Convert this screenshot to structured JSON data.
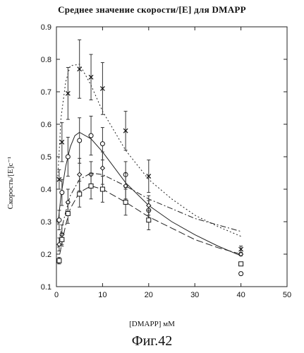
{
  "title": "Среднее значение скорости/[E] для DMAPP",
  "figure_caption": "Фиг.42",
  "chart_data": {
    "type": "scatter",
    "title": "Среднее значение скорости/[E] для DMAPP",
    "xlabel": "[DMAPP] мМ",
    "ylabel": "Скорость/[E]с⁻¹",
    "xlim": [
      0,
      50
    ],
    "ylim": [
      0.1,
      0.9
    ],
    "xticks": [
      0,
      10,
      20,
      30,
      40,
      50
    ],
    "yticks": [
      0.1,
      0.2,
      0.3,
      0.4,
      0.5,
      0.6,
      0.7,
      0.8,
      0.9
    ],
    "grid": false,
    "series": [
      {
        "marker": "x",
        "points": [
          {
            "x": 0.6,
            "y": 0.43,
            "err": 0.03
          },
          {
            "x": 1.2,
            "y": 0.545,
            "err": 0.06
          },
          {
            "x": 2.5,
            "y": 0.695,
            "err": 0.08
          },
          {
            "x": 5,
            "y": 0.77,
            "err": 0.09
          },
          {
            "x": 7.5,
            "y": 0.745,
            "err": 0.07
          },
          {
            "x": 10,
            "y": 0.71,
            "err": 0.08
          },
          {
            "x": 15,
            "y": 0.58,
            "err": 0.06
          },
          {
            "x": 20,
            "y": 0.44,
            "err": 0.05
          },
          {
            "x": 40,
            "y": 0.215,
            "err": 0.01
          }
        ],
        "fit": {
          "line_style": "dotted",
          "curve": [
            [
              0.3,
              0.44
            ],
            [
              1,
              0.62
            ],
            [
              2,
              0.73
            ],
            [
              3,
              0.78
            ],
            [
              5,
              0.785
            ],
            [
              7.5,
              0.72
            ],
            [
              10,
              0.64
            ],
            [
              15,
              0.52
            ],
            [
              20,
              0.43
            ],
            [
              25,
              0.37
            ],
            [
              30,
              0.32
            ],
            [
              35,
              0.285
            ],
            [
              40,
              0.255
            ]
          ]
        }
      },
      {
        "marker": "o",
        "points": [
          {
            "x": 0.6,
            "y": 0.305,
            "err": 0.03
          },
          {
            "x": 1.2,
            "y": 0.39,
            "err": 0.04
          },
          {
            "x": 2.5,
            "y": 0.5,
            "err": 0.06
          },
          {
            "x": 5,
            "y": 0.55,
            "err": 0.07
          },
          {
            "x": 7.5,
            "y": 0.565,
            "err": 0.06
          },
          {
            "x": 10,
            "y": 0.54,
            "err": 0.05
          },
          {
            "x": 15,
            "y": 0.445,
            "err": 0.04
          },
          {
            "x": 20,
            "y": 0.335,
            "err": 0.03
          },
          {
            "x": 40,
            "y": 0.14,
            "err": 0.005
          }
        ],
        "fit": {
          "line_style": "solid",
          "curve": [
            [
              0.3,
              0.29
            ],
            [
              1,
              0.38
            ],
            [
              2,
              0.47
            ],
            [
              3,
              0.53
            ],
            [
              4,
              0.565
            ],
            [
              5,
              0.575
            ],
            [
              7.5,
              0.555
            ],
            [
              10,
              0.515
            ],
            [
              15,
              0.42
            ],
            [
              20,
              0.35
            ],
            [
              25,
              0.3
            ],
            [
              30,
              0.26
            ],
            [
              35,
              0.225
            ],
            [
              40,
              0.195
            ]
          ]
        }
      },
      {
        "marker": "diamond",
        "points": [
          {
            "x": 0.6,
            "y": 0.23,
            "err": 0.02
          },
          {
            "x": 1.2,
            "y": 0.26,
            "err": 0.03
          },
          {
            "x": 2.5,
            "y": 0.36,
            "err": 0.04
          },
          {
            "x": 5,
            "y": 0.445,
            "err": 0.05
          },
          {
            "x": 7.5,
            "y": 0.445,
            "err": 0.04
          },
          {
            "x": 10,
            "y": 0.465,
            "err": 0.05
          },
          {
            "x": 15,
            "y": 0.41,
            "err": 0.04
          },
          {
            "x": 20,
            "y": 0.35,
            "err": 0.03
          },
          {
            "x": 40,
            "y": 0.2,
            "err": 0.005
          }
        ],
        "fit": {
          "line_style": "dash-dot",
          "curve": [
            [
              0.3,
              0.22
            ],
            [
              1,
              0.27
            ],
            [
              2,
              0.33
            ],
            [
              3,
              0.38
            ],
            [
              5,
              0.43
            ],
            [
              7.5,
              0.45
            ],
            [
              10,
              0.445
            ],
            [
              15,
              0.41
            ],
            [
              20,
              0.37
            ],
            [
              25,
              0.34
            ],
            [
              30,
              0.31
            ],
            [
              35,
              0.29
            ],
            [
              40,
              0.27
            ]
          ]
        }
      },
      {
        "marker": "square",
        "points": [
          {
            "x": 0.6,
            "y": 0.18,
            "err": 0.01
          },
          {
            "x": 1.2,
            "y": 0.245,
            "err": 0.02
          },
          {
            "x": 2.5,
            "y": 0.325,
            "err": 0.03
          },
          {
            "x": 5,
            "y": 0.385,
            "err": 0.04
          },
          {
            "x": 7.5,
            "y": 0.41,
            "err": 0.04
          },
          {
            "x": 10,
            "y": 0.4,
            "err": 0.04
          },
          {
            "x": 15,
            "y": 0.36,
            "err": 0.04
          },
          {
            "x": 20,
            "y": 0.305,
            "err": 0.03
          },
          {
            "x": 40,
            "y": 0.17,
            "err": 0.005
          }
        ],
        "fit": {
          "line_style": "long-dash",
          "curve": [
            [
              0.3,
              0.17
            ],
            [
              1,
              0.22
            ],
            [
              2,
              0.29
            ],
            [
              3,
              0.34
            ],
            [
              5,
              0.39
            ],
            [
              7.5,
              0.41
            ],
            [
              10,
              0.4
            ],
            [
              15,
              0.36
            ],
            [
              20,
              0.315
            ],
            [
              25,
              0.28
            ],
            [
              30,
              0.245
            ],
            [
              35,
              0.22
            ],
            [
              40,
              0.2
            ]
          ]
        }
      }
    ]
  }
}
